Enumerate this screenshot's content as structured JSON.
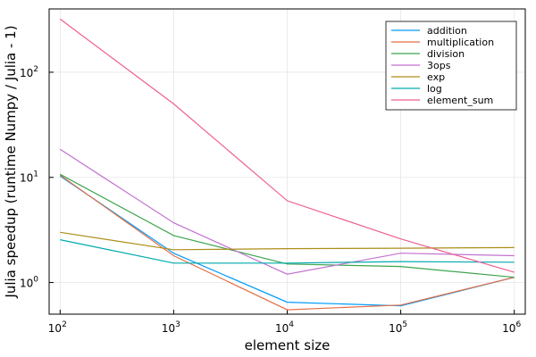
{
  "chart_data": {
    "type": "line",
    "xlabel": "element size",
    "ylabel": "Julia speedup (runtime Numpy / Julia - 1)",
    "xscale": "log",
    "yscale": "log",
    "xlim": [
      80,
      1250000
    ],
    "ylim": [
      0.5,
      400
    ],
    "grid": true,
    "legend_position": "top-right",
    "x_ticks": [
      {
        "value": 100,
        "base": "10",
        "exp": "2"
      },
      {
        "value": 1000,
        "base": "10",
        "exp": "3"
      },
      {
        "value": 10000,
        "base": "10",
        "exp": "4"
      },
      {
        "value": 100000,
        "base": "10",
        "exp": "5"
      },
      {
        "value": 1000000,
        "base": "10",
        "exp": "6"
      }
    ],
    "y_ticks": [
      {
        "value": 1,
        "base": "10",
        "exp": "0"
      },
      {
        "value": 10,
        "base": "10",
        "exp": "1"
      },
      {
        "value": 100,
        "base": "10",
        "exp": "2"
      }
    ],
    "x": [
      100,
      1000,
      10000,
      100000,
      1000000
    ],
    "series": [
      {
        "name": "addition",
        "color": "#009AFA",
        "values": [
          10.3,
          1.9,
          0.65,
          0.6,
          1.12
        ]
      },
      {
        "name": "multiplication",
        "color": "#E36F47",
        "values": [
          10.5,
          1.8,
          0.55,
          0.61,
          1.12
        ]
      },
      {
        "name": "division",
        "color": "#3EA44E",
        "values": [
          10.7,
          2.8,
          1.5,
          1.42,
          1.12
        ]
      },
      {
        "name": "3ops",
        "color": "#C371D2",
        "values": [
          18.5,
          3.7,
          1.2,
          1.9,
          1.8
        ]
      },
      {
        "name": "exp",
        "color": "#AC8E18",
        "values": [
          3.0,
          2.05,
          2.1,
          2.12,
          2.15
        ]
      },
      {
        "name": "log",
        "color": "#00AAAE",
        "values": [
          2.55,
          1.53,
          1.53,
          1.58,
          1.56
        ]
      },
      {
        "name": "element_sum",
        "color": "#ED5E93",
        "values": [
          320,
          50,
          6.0,
          2.6,
          1.25
        ]
      }
    ]
  }
}
